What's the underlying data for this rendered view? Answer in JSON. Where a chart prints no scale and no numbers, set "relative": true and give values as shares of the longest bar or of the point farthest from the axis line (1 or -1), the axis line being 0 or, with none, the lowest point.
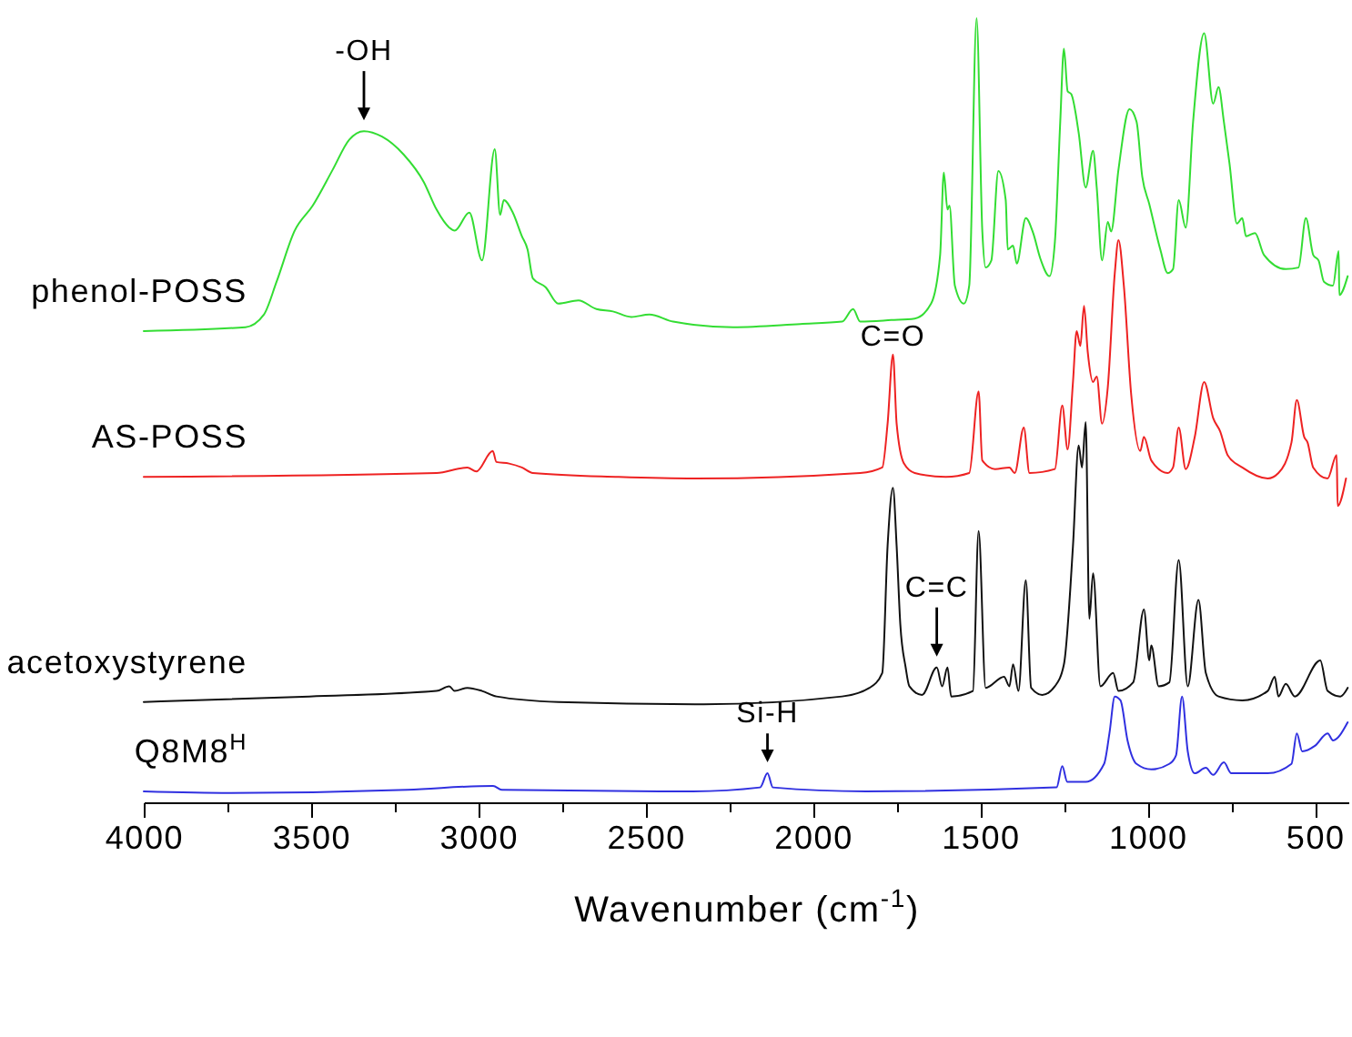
{
  "chart_data": {
    "type": "line",
    "xlabel": "Wavenumber (cm$^{-1}$)",
    "xlim": [
      4000,
      400
    ],
    "xticks": [
      4000,
      {
        "value": 3750,
        "label": null
      },
      3500,
      {
        "value": 3250,
        "label": null
      },
      3000,
      {
        "value": 2750,
        "label": null
      },
      2500,
      {
        "value": 2250,
        "label": null
      },
      2000,
      {
        "value": 1750,
        "label": null
      },
      1500,
      {
        "value": 1250,
        "label": null
      },
      1000,
      {
        "value": 750,
        "label": null
      },
      500
    ],
    "relative": true,
    "series": [
      {
        "name": "phenol-POSS",
        "color": "#33dd33",
        "x": [
          4000,
          3696,
          3641,
          3603,
          3549,
          3495,
          3435,
          3386,
          3342,
          3288,
          3223,
          3163,
          3125,
          3087,
          3071,
          3027,
          2989,
          2951,
          2935,
          2924,
          2897,
          2870,
          2853,
          2837,
          2799,
          2761,
          2701,
          2647,
          2598,
          2543,
          2489,
          2418,
          2239,
          2038,
          1913,
          1880,
          1859,
          1766,
          1696,
          1647,
          1620,
          1609,
          1598,
          1592,
          1576,
          1549,
          1533,
          1511,
          1494,
          1484,
          1467,
          1446,
          1424,
          1418,
          1402,
          1391,
          1364,
          1342,
          1321,
          1293,
          1277,
          1261,
          1250,
          1239,
          1228,
          1206,
          1185,
          1163,
          1152,
          1136,
          1119,
          1109,
          1087,
          1054,
          1033,
          1016,
          995,
          962,
          940,
          924,
          907,
          886,
          864,
          831,
          804,
          788,
          772,
          755,
          733,
          717,
          706,
          679,
          652,
          587,
          549,
          527,
          505,
          489,
          473,
          446,
          429,
          427,
          402
        ],
        "values": [
          0.601,
          0.606,
          0.622,
          0.664,
          0.729,
          0.761,
          0.807,
          0.845,
          0.856,
          0.849,
          0.826,
          0.791,
          0.756,
          0.733,
          0.729,
          0.752,
          0.691,
          0.833,
          0.749,
          0.768,
          0.752,
          0.722,
          0.705,
          0.668,
          0.657,
          0.636,
          0.64,
          0.629,
          0.626,
          0.619,
          0.622,
          0.613,
          0.606,
          0.61,
          0.613,
          0.629,
          0.613,
          0.615,
          0.617,
          0.636,
          0.698,
          0.803,
          0.756,
          0.761,
          0.659,
          0.636,
          0.659,
          1.0,
          0.729,
          0.682,
          0.691,
          0.805,
          0.768,
          0.705,
          0.71,
          0.687,
          0.745,
          0.726,
          0.694,
          0.671,
          0.715,
          0.868,
          0.961,
          0.907,
          0.903,
          0.854,
          0.784,
          0.831,
          0.784,
          0.691,
          0.74,
          0.728,
          0.807,
          0.884,
          0.868,
          0.798,
          0.763,
          0.705,
          0.675,
          0.68,
          0.768,
          0.733,
          0.868,
          0.981,
          0.891,
          0.912,
          0.868,
          0.814,
          0.738,
          0.745,
          0.722,
          0.726,
          0.698,
          0.68,
          0.682,
          0.745,
          0.698,
          0.691,
          0.664,
          0.659,
          0.703,
          0.647,
          0.671
        ]
      },
      {
        "name": "AS-POSS",
        "color": "#ee2222",
        "x": [
          4000,
          3125,
          3033,
          3006,
          2957,
          2946,
          2908,
          2870,
          2837,
          2581,
          2348,
          1859,
          1793,
          1777,
          1761,
          1750,
          1728,
          1696,
          1603,
          1533,
          1505,
          1494,
          1456,
          1413,
          1397,
          1370,
          1353,
          1277,
          1255,
          1239,
          1223,
          1212,
          1201,
          1190,
          1179,
          1163,
          1152,
          1136,
          1119,
          1098,
          1087,
          1071,
          1049,
          1022,
          1011,
          989,
          940,
          924,
          907,
          886,
          859,
          831,
          804,
          783,
          761,
          717,
          641,
          609,
          570,
          554,
          532,
          522,
          505,
          462,
          435,
          432,
          407
        ],
        "values": [
          0.415,
          0.42,
          0.427,
          0.422,
          0.448,
          0.434,
          0.432,
          0.427,
          0.42,
          0.415,
          0.413,
          0.42,
          0.427,
          0.483,
          0.571,
          0.483,
          0.432,
          0.42,
          0.415,
          0.42,
          0.524,
          0.436,
          0.425,
          0.427,
          0.42,
          0.478,
          0.42,
          0.425,
          0.506,
          0.45,
          0.536,
          0.601,
          0.582,
          0.633,
          0.575,
          0.536,
          0.543,
          0.483,
          0.529,
          0.675,
          0.717,
          0.659,
          0.52,
          0.448,
          0.466,
          0.436,
          0.42,
          0.427,
          0.478,
          0.425,
          0.466,
          0.536,
          0.49,
          0.473,
          0.443,
          0.427,
          0.413,
          0.42,
          0.459,
          0.513,
          0.466,
          0.459,
          0.427,
          0.413,
          0.443,
          0.378,
          0.413
        ]
      },
      {
        "name": "acetoxystyrene",
        "color": "#111111",
        "x": [
          4000,
          3505,
          3125,
          3087,
          3071,
          3033,
          2989,
          2946,
          2761,
          2326,
          1913,
          1831,
          1793,
          1777,
          1761,
          1750,
          1739,
          1723,
          1712,
          1674,
          1630,
          1614,
          1598,
          1587,
          1522,
          1505,
          1484,
          1429,
          1413,
          1402,
          1386,
          1364,
          1348,
          1315,
          1277,
          1250,
          1223,
          1206,
          1196,
          1185,
          1174,
          1163,
          1141,
          1103,
          1087,
          1043,
          1011,
          995,
          989,
          967,
          935,
          907,
          880,
          848,
          826,
          788,
          717,
          641,
          620,
          609,
          587,
          560,
          484,
          462,
          424,
          402
        ],
        "values": [
          0.128,
          0.135,
          0.142,
          0.148,
          0.142,
          0.146,
          0.142,
          0.135,
          0.128,
          0.125,
          0.135,
          0.146,
          0.165,
          0.327,
          0.401,
          0.327,
          0.227,
          0.172,
          0.148,
          0.137,
          0.172,
          0.148,
          0.172,
          0.135,
          0.142,
          0.346,
          0.146,
          0.16,
          0.148,
          0.176,
          0.142,
          0.283,
          0.146,
          0.137,
          0.148,
          0.176,
          0.327,
          0.455,
          0.427,
          0.485,
          0.234,
          0.292,
          0.148,
          0.165,
          0.142,
          0.153,
          0.246,
          0.181,
          0.2,
          0.148,
          0.153,
          0.309,
          0.148,
          0.258,
          0.165,
          0.135,
          0.13,
          0.142,
          0.16,
          0.135,
          0.151,
          0.135,
          0.181,
          0.142,
          0.135,
          0.146
        ]
      },
      {
        "name": "Q8M8$^{H}$",
        "color": "#3030e0",
        "x": [
          4000,
          3744,
          3212,
          2956,
          2930,
          2359,
          2158,
          2136,
          2120,
          1842,
          1272,
          1255,
          1240,
          1185,
          1130,
          1114,
          1098,
          1081,
          1060,
          1033,
          989,
          935,
          915,
          897,
          880,
          859,
          826,
          804,
          772,
          750,
          641,
          570,
          554,
          538,
          500,
          462,
          446,
          402
        ],
        "values": [
          0.014,
          0.012,
          0.016,
          0.021,
          0.016,
          0.014,
          0.019,
          0.037,
          0.019,
          0.014,
          0.019,
          0.046,
          0.026,
          0.026,
          0.049,
          0.088,
          0.135,
          0.13,
          0.079,
          0.049,
          0.042,
          0.049,
          0.06,
          0.135,
          0.065,
          0.037,
          0.044,
          0.035,
          0.051,
          0.037,
          0.037,
          0.049,
          0.088,
          0.065,
          0.072,
          0.088,
          0.079,
          0.102
        ]
      }
    ],
    "annotations": [
      {
        "text": "-OH",
        "x": 3342,
        "y": 0.856
      },
      {
        "text": "C=O",
        "x": 1761,
        "y": 0.571
      },
      {
        "text": "C=C",
        "x": 1630,
        "y": 0.172
      },
      {
        "text": "Si-H",
        "x": 2136,
        "y": 0.037
      }
    ]
  }
}
